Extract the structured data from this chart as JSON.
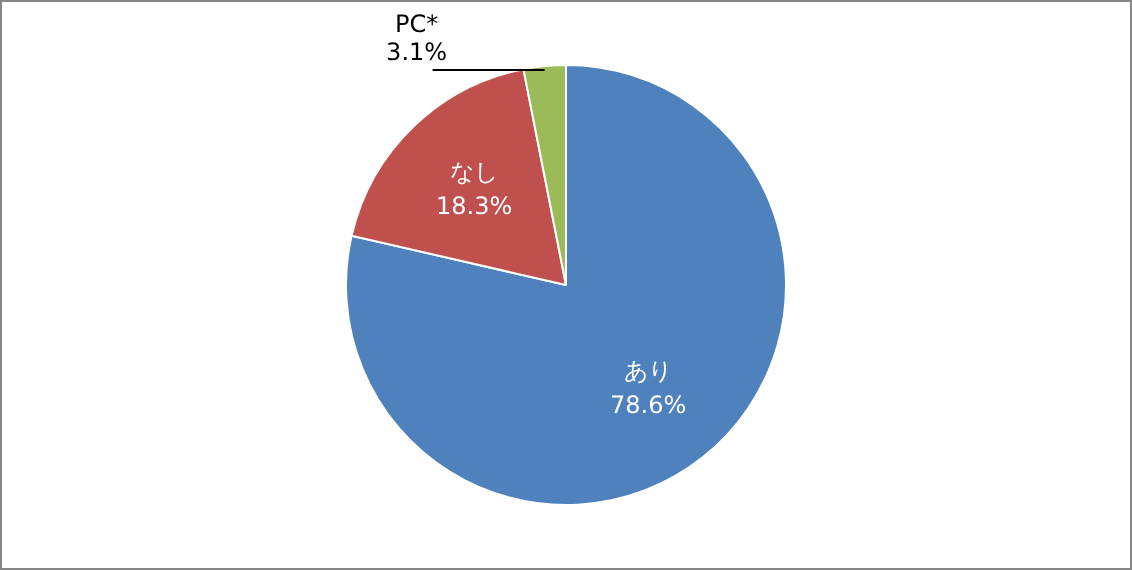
{
  "chart_data": {
    "type": "pie",
    "categories": [
      "あり",
      "なし",
      "PC*"
    ],
    "values": [
      78.6,
      18.3,
      3.1
    ],
    "value_labels": [
      "78.6%",
      "18.3%",
      "3.1%"
    ],
    "colors": [
      "#4f81bd",
      "#c0504d",
      "#9bbb59"
    ],
    "legend": false
  }
}
